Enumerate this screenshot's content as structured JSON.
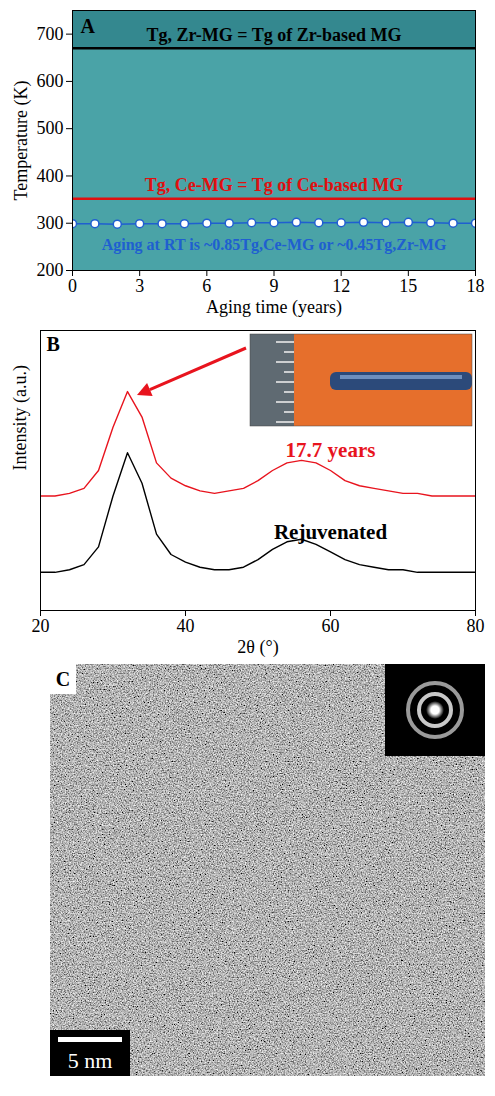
{
  "chart_data": [
    {
      "panel_label": "A",
      "type": "line",
      "x_label": "Aging time (years)",
      "y_label": "Temperature (K)",
      "xlim": [
        0,
        18
      ],
      "xticks": [
        0,
        3,
        6,
        9,
        12,
        15,
        18
      ],
      "ylim": [
        200,
        750
      ],
      "yticks": [
        200,
        300,
        400,
        500,
        600,
        700
      ],
      "x": [
        0,
        1,
        2,
        3,
        4,
        5,
        6,
        7,
        8,
        9,
        10,
        11,
        12,
        13,
        14,
        15,
        16,
        17,
        18
      ],
      "series": [
        {
          "name": "Aging at RT is ~0.85Tg,Ce-MG or ~0.45Tg,Zr-MG",
          "color": "#1f5fd0",
          "marker": "circle",
          "values": [
            299,
            299,
            298,
            299,
            299,
            299,
            300,
            300,
            301,
            301,
            302,
            301,
            301,
            302,
            301,
            302,
            301,
            300,
            300
          ]
        }
      ],
      "reference_lines": [
        {
          "name": "Tg, Zr-MG = Tg of Zr-based MG",
          "value": 670,
          "color": "#000000"
        },
        {
          "name": "Tg, Ce-MG = Tg of Ce-based MG",
          "value": 352,
          "color": "#e01010"
        }
      ]
    },
    {
      "panel_label": "B",
      "type": "line",
      "x_label": "2θ (°)",
      "y_label": "Intensity (a.u.)",
      "xlim": [
        20,
        80
      ],
      "xticks": [
        20,
        40,
        60,
        80
      ],
      "ylim": [
        0,
        110
      ],
      "tick_labels": "x",
      "x": [
        20,
        22,
        24,
        26,
        28,
        30,
        32,
        34,
        36,
        38,
        40,
        42,
        44,
        46,
        48,
        50,
        52,
        54,
        56,
        58,
        60,
        62,
        64,
        66,
        68,
        70,
        72,
        74,
        76,
        78,
        80
      ],
      "series": [
        {
          "name": "17.7 years",
          "color": "#e8141e",
          "values": [
            45,
            45,
            46,
            48,
            55,
            72,
            86,
            76,
            58,
            52,
            49,
            47,
            46,
            47,
            48,
            51,
            55,
            58,
            59,
            58,
            55,
            51,
            49,
            48,
            47,
            46,
            46,
            45,
            45,
            45,
            45
          ]
        },
        {
          "name": "Rejuvenated",
          "color": "#000000",
          "values": [
            15,
            15,
            16,
            18,
            25,
            45,
            62,
            50,
            30,
            22,
            19,
            17,
            16,
            16,
            17,
            20,
            24,
            27,
            28,
            26,
            23,
            20,
            18,
            17,
            16,
            16,
            15,
            15,
            15,
            15,
            15
          ]
        }
      ]
    }
  ],
  "image_panel": {
    "panel_label": "C",
    "scale_bar": "5 nm"
  }
}
